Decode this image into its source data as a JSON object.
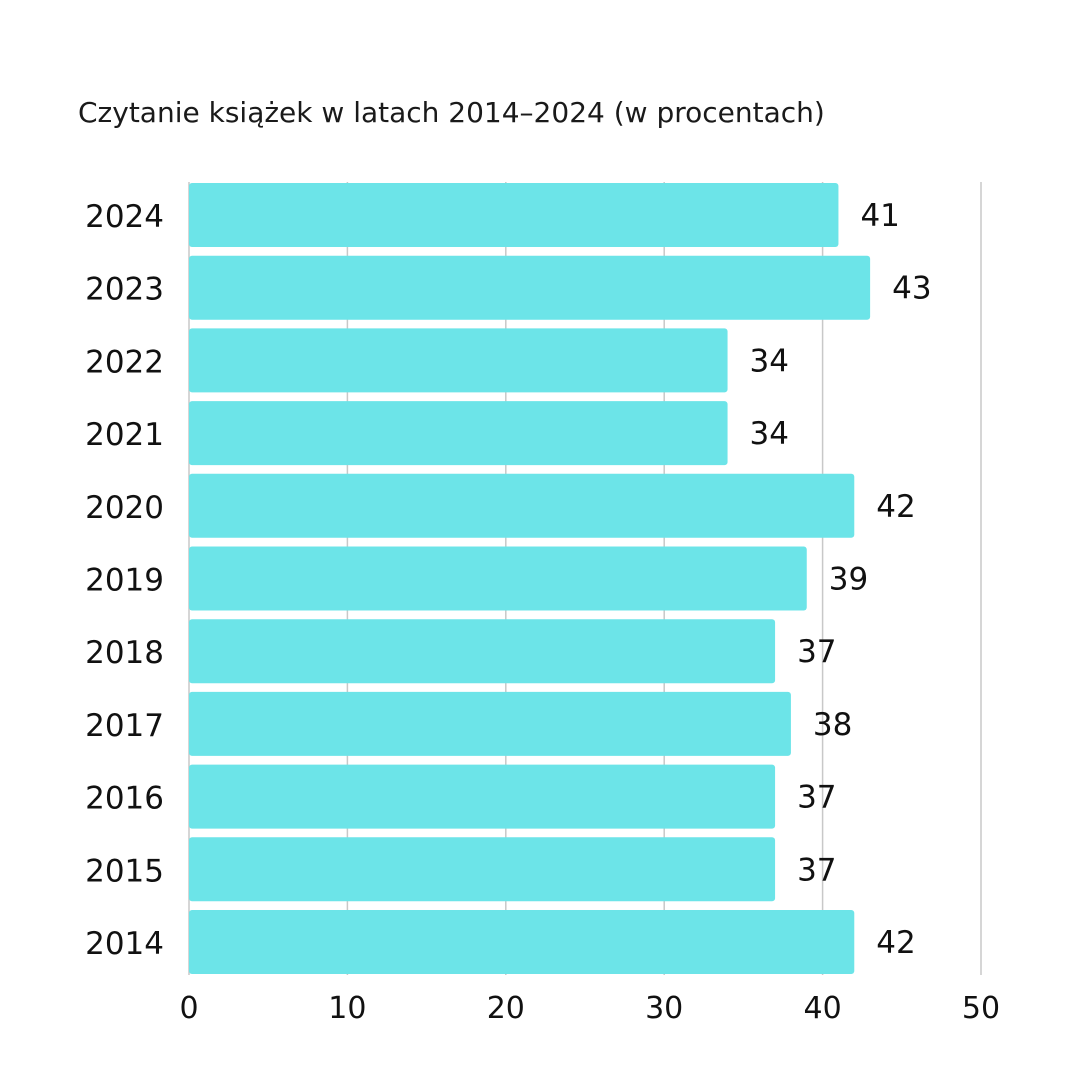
{
  "chart_data": {
    "type": "bar",
    "orientation": "horizontal",
    "title": "Czytanie książek w latach 2014–2024 (w procentach)",
    "categories": [
      "2024",
      "2023",
      "2022",
      "2021",
      "2020",
      "2019",
      "2018",
      "2017",
      "2016",
      "2015",
      "2014"
    ],
    "values": [
      41,
      43,
      34,
      34,
      42,
      39,
      37,
      38,
      37,
      37,
      42
    ],
    "xlim": [
      0,
      50
    ],
    "xticks": [
      "0",
      "10",
      "20",
      "30",
      "40",
      "50"
    ],
    "grid": true,
    "legend": "none",
    "bar_color": "#6ce4e8",
    "grid_color": "#c8c8c8"
  }
}
